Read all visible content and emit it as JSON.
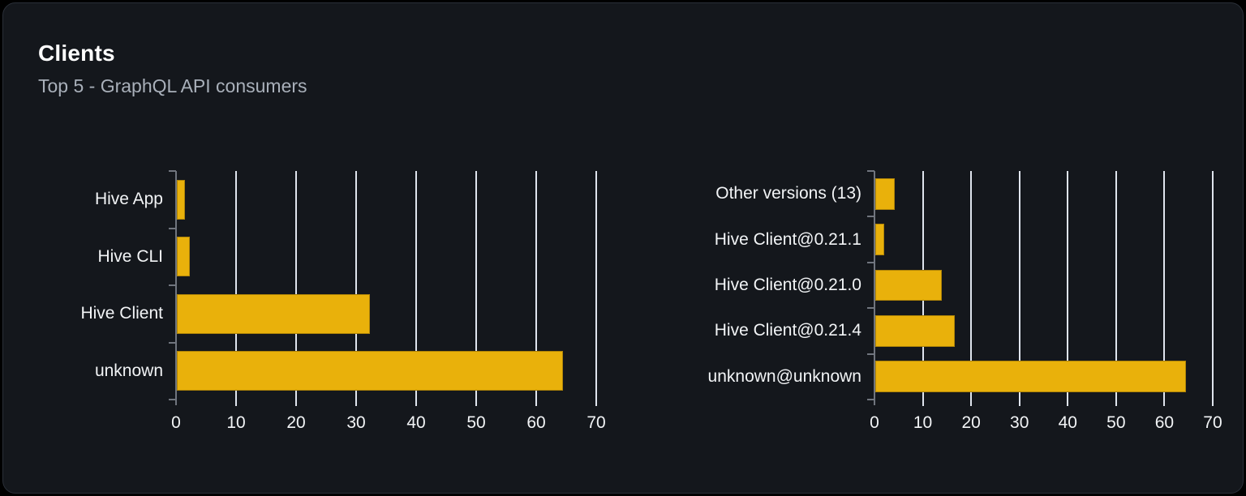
{
  "card": {
    "title": "Clients",
    "subtitle": "Top 5 - GraphQL API consumers"
  },
  "colors": {
    "bar": "#e9b10b",
    "grid": "#dfe4ed",
    "axis": "#70757e",
    "label_text": "#f2f4f6",
    "subtitle_text": "#a9b0ba",
    "title_text": "#ffffff",
    "card_bg": "#14171c",
    "card_border": "#2a2f38",
    "page_bg": "#000000"
  },
  "chart_data": [
    {
      "type": "bar",
      "orientation": "horizontal",
      "categories": [
        "Hive App",
        "Hive CLI",
        "Hive Client",
        "unknown"
      ],
      "values": [
        1.4,
        2.2,
        32.1,
        64.3
      ],
      "xticks": [
        0,
        10,
        20,
        30,
        40,
        50,
        60,
        70
      ],
      "xlim": [
        0,
        70
      ],
      "xlabel": "",
      "ylabel": "",
      "grid": true,
      "legend": false
    },
    {
      "type": "bar",
      "orientation": "horizontal",
      "categories": [
        "Other versions (13)",
        "Hive Client@0.21.1",
        "Hive Client@0.21.0",
        "Hive Client@0.21.4",
        "unknown@unknown"
      ],
      "values": [
        4.0,
        1.9,
        13.7,
        16.5,
        64.3
      ],
      "xticks": [
        0,
        10,
        20,
        30,
        40,
        50,
        60,
        70
      ],
      "xlim": [
        0,
        70
      ],
      "xlabel": "",
      "ylabel": "",
      "grid": true,
      "legend": false
    }
  ]
}
